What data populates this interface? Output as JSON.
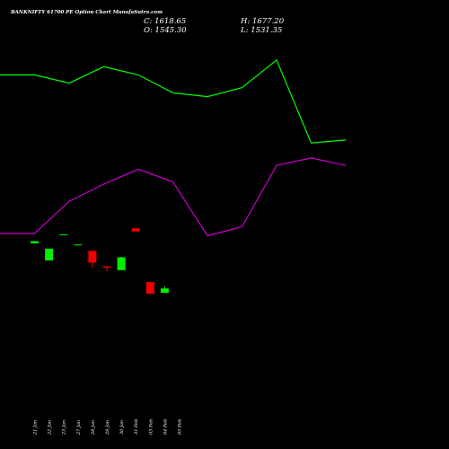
{
  "header": {
    "title": "BANKNIFTY 61700  PE Option  Chart MunafaSutra.com",
    "close": "C: 1618.65",
    "open": "O: 1545.30",
    "high": "H: 1677.20",
    "low": "L: 1531.35"
  },
  "colors": {
    "background": "#000000",
    "up": "#00ee00",
    "down": "#ee0000",
    "line_green": "#00ff00",
    "line_magenta": "#cc00cc",
    "text": "#ffffff"
  },
  "chart_data": {
    "type": "candlestick",
    "x": [
      "21 Jan",
      "22 Jan",
      "23 Jan",
      "27 Jan",
      "28 Jan",
      "29 Jan",
      "30 Jan",
      "31 Feb",
      "03 Feb",
      "04 Feb",
      "05 Feb"
    ],
    "candles": [
      {
        "date": "21 Jan",
        "open": 83.0,
        "close": 85.0,
        "high": 85.0,
        "low": 83.0
      },
      {
        "date": "22 Jan",
        "open": 67.0,
        "close": 78.0,
        "high": 78.0,
        "low": 67.0
      },
      {
        "date": "23 Jan",
        "open": 91.0,
        "close": 91.4,
        "high": 91.4,
        "low": 91.0
      },
      {
        "date": "27 Jan",
        "open": 81.5,
        "close": 81.9,
        "high": 81.9,
        "low": 81.5
      },
      {
        "date": "28 Jan",
        "open": 76.0,
        "close": 65.0,
        "high": 76.0,
        "low": 60.0
      },
      {
        "date": "29 Jan",
        "open": 61.6,
        "close": 60.4,
        "high": 62.0,
        "low": 57.0
      },
      {
        "date": "30 Jan",
        "open": 58.0,
        "close": 70.0,
        "high": 70.5,
        "low": 58.0
      },
      {
        "date": "31 Feb",
        "open": 97.0,
        "close": 94.0,
        "high": 97.0,
        "low": 94.0
      },
      {
        "date": "03 Feb",
        "open": 47.0,
        "close": 36.0,
        "high": 47.0,
        "low": 36.0
      },
      {
        "date": "04 Feb",
        "open": 37.0,
        "close": 41.0,
        "high": 43.0,
        "low": 37.0
      }
    ],
    "series": [
      {
        "values": [
          260,
          260,
          249,
          271,
          260,
          236,
          231,
          243,
          280,
          169,
          173
        ]
      },
      {
        "values": [
          48,
          48,
          91,
          114,
          134,
          117,
          45,
          57,
          139,
          149,
          139
        ]
      }
    ],
    "xlabel": "",
    "ylabel": "",
    "grid": false
  }
}
